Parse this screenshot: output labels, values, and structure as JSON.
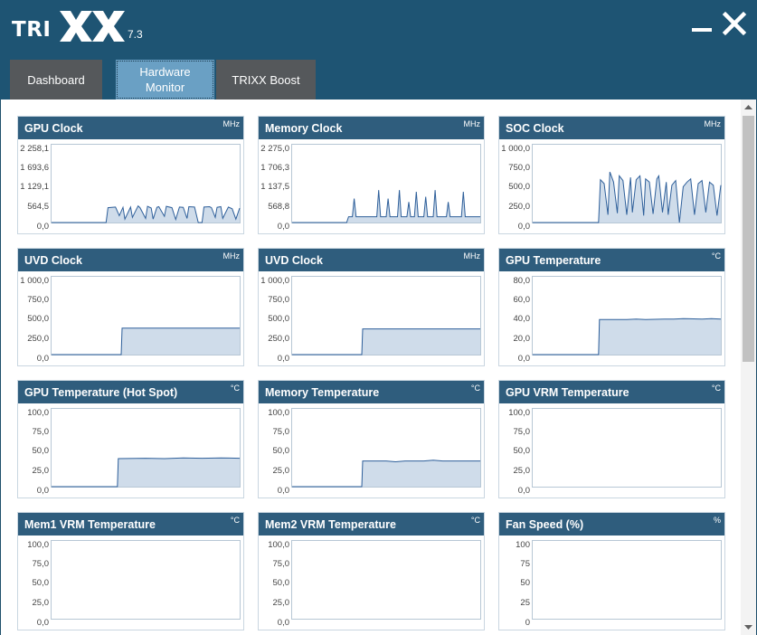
{
  "app": {
    "logo_text": "TRIXX",
    "version": "7.3"
  },
  "tabs": [
    {
      "label": "Dashboard",
      "active": false
    },
    {
      "label": "Hardware Monitor",
      "active": true
    },
    {
      "label": "TRIXX Boost",
      "active": false
    }
  ],
  "window_controls": {
    "minimize_icon": "minimize-icon",
    "close_icon": "close-icon"
  },
  "colors": {
    "header_bg": "#1e5473",
    "card_header": "#2f5d7d",
    "active_tab": "#6aa0c4",
    "inactive_tab": "#55585b",
    "chart_line": "#2e5f9a",
    "chart_fill": "#cfdcea"
  },
  "monitors": [
    {
      "title": "GPU Clock",
      "unit": "MHz",
      "ticks": [
        "2 258,1",
        "1 693,6",
        "1 129,1",
        "564,5",
        "0,0"
      ],
      "chart_data": {
        "type": "area",
        "ylim": [
          0,
          2258.1
        ],
        "x": [
          0,
          0.29,
          0.3,
          0.34,
          0.36,
          0.38,
          0.39,
          0.42,
          0.43,
          0.46,
          0.47,
          0.5,
          0.51,
          0.53,
          0.54,
          0.56,
          0.57,
          0.6,
          0.61,
          0.64,
          0.66,
          0.68,
          0.7,
          0.72,
          0.73,
          0.76,
          0.78,
          0.8,
          0.81,
          0.84,
          0.85,
          0.87,
          0.88,
          0.9,
          0.91,
          0.94,
          0.96,
          0.98,
          1
        ],
        "y": [
          0,
          0,
          430,
          450,
          200,
          440,
          100,
          450,
          150,
          480,
          430,
          120,
          470,
          420,
          100,
          440,
          460,
          180,
          470,
          430,
          90,
          450,
          440,
          120,
          460,
          450,
          0,
          0,
          450,
          460,
          430,
          150,
          440,
          460,
          120,
          450,
          400,
          100,
          420
        ]
      }
    },
    {
      "title": "Memory Clock",
      "unit": "MHz",
      "ticks": [
        "2 275,0",
        "1 706,3",
        "1 137,5",
        "568,8",
        "0,0"
      ],
      "chart_data": {
        "type": "area",
        "ylim": [
          0,
          2275
        ],
        "x": [
          0,
          0.29,
          0.3,
          0.32,
          0.33,
          0.34,
          0.45,
          0.46,
          0.47,
          0.5,
          0.51,
          0.52,
          0.56,
          0.57,
          0.58,
          0.61,
          0.62,
          0.63,
          0.65,
          0.66,
          0.67,
          0.7,
          0.71,
          0.72,
          0.75,
          0.76,
          0.77,
          0.82,
          0.83,
          0.84,
          0.9,
          0.91,
          0.92,
          1
        ],
        "y": [
          0,
          0,
          170,
          170,
          700,
          170,
          170,
          950,
          170,
          170,
          700,
          170,
          170,
          950,
          170,
          170,
          600,
          170,
          170,
          900,
          170,
          170,
          750,
          170,
          170,
          950,
          170,
          170,
          600,
          170,
          170,
          900,
          170,
          170
        ]
      }
    },
    {
      "title": "SOC Clock",
      "unit": "MHz",
      "ticks": [
        "1 000,0",
        "750,0",
        "500,0",
        "250,0",
        "0,0"
      ],
      "chart_data": {
        "type": "area",
        "ylim": [
          0,
          1000
        ],
        "x": [
          0,
          0.35,
          0.36,
          0.38,
          0.4,
          0.41,
          0.43,
          0.45,
          0.46,
          0.48,
          0.5,
          0.52,
          0.53,
          0.55,
          0.57,
          0.59,
          0.6,
          0.62,
          0.64,
          0.66,
          0.67,
          0.69,
          0.71,
          0.72,
          0.74,
          0.76,
          0.78,
          0.8,
          0.82,
          0.84,
          0.86,
          0.88,
          0.9,
          0.92,
          0.94,
          0.96,
          0.98,
          1
        ],
        "y": [
          0,
          0,
          550,
          500,
          100,
          650,
          520,
          120,
          600,
          540,
          100,
          580,
          130,
          550,
          600,
          90,
          560,
          520,
          110,
          560,
          600,
          130,
          520,
          100,
          480,
          540,
          0,
          460,
          520,
          560,
          100,
          500,
          540,
          130,
          520,
          480,
          90,
          480
        ]
      }
    },
    {
      "title": "UVD Clock",
      "unit": "MHz",
      "ticks": [
        "1 000,0",
        "750,0",
        "500,0",
        "250,0",
        "0,0"
      ],
      "chart_data": {
        "type": "area",
        "ylim": [
          0,
          1000
        ],
        "x": [
          0,
          0.37,
          0.375,
          1
        ],
        "y": [
          0,
          0,
          340,
          340
        ]
      }
    },
    {
      "title": "UVD Clock",
      "unit": "MHz",
      "ticks": [
        "1 000,0",
        "750,0",
        "500,0",
        "250,0",
        "0,0"
      ],
      "chart_data": {
        "type": "area",
        "ylim": [
          0,
          1000
        ],
        "x": [
          0,
          0.37,
          0.375,
          1
        ],
        "y": [
          0,
          0,
          330,
          330
        ]
      }
    },
    {
      "title": "GPU Temperature",
      "unit": "°C",
      "ticks": [
        "80,0",
        "60,0",
        "40,0",
        "20,0",
        "0,0"
      ],
      "chart_data": {
        "type": "area",
        "ylim": [
          0,
          80
        ],
        "x": [
          0,
          0.35,
          0.355,
          0.5,
          0.55,
          0.6,
          0.7,
          0.75,
          0.8,
          0.9,
          0.95,
          1
        ],
        "y": [
          0,
          0,
          36,
          36,
          36.5,
          36,
          36.5,
          36.5,
          37,
          36.5,
          37,
          36.5
        ]
      }
    },
    {
      "title": "GPU Temperature (Hot Spot)",
      "unit": "°C",
      "ticks": [
        "100,0",
        "75,0",
        "50,0",
        "25,0",
        "0,0"
      ],
      "chart_data": {
        "type": "area",
        "ylim": [
          0,
          100
        ],
        "x": [
          0,
          0.35,
          0.355,
          0.5,
          0.6,
          0.7,
          0.8,
          0.9,
          1
        ],
        "y": [
          0,
          0,
          36,
          36.5,
          36,
          37,
          36.5,
          37,
          36.5
        ]
      }
    },
    {
      "title": "Memory Temperature",
      "unit": "°C",
      "ticks": [
        "100,0",
        "75,0",
        "50,0",
        "25,0",
        "0,0"
      ],
      "chart_data": {
        "type": "area",
        "ylim": [
          0,
          100
        ],
        "x": [
          0,
          0.37,
          0.375,
          0.5,
          0.55,
          0.6,
          0.7,
          0.75,
          0.8,
          0.9,
          1
        ],
        "y": [
          0,
          0,
          33,
          33,
          32,
          33,
          33,
          34,
          33,
          33,
          33
        ]
      }
    },
    {
      "title": "GPU VRM Temperature",
      "unit": "°C",
      "ticks": [
        "100,0",
        "75,0",
        "50,0",
        "25,0",
        "0,0"
      ],
      "chart_data": {
        "type": "area",
        "ylim": [
          0,
          100
        ],
        "x": [],
        "y": []
      }
    },
    {
      "title": "Mem1 VRM Temperature",
      "unit": "°C",
      "ticks": [
        "100,0",
        "75,0",
        "50,0",
        "25,0",
        "0,0"
      ],
      "chart_data": {
        "type": "area",
        "ylim": [
          0,
          100
        ],
        "x": [],
        "y": []
      }
    },
    {
      "title": "Mem2 VRM Temperature",
      "unit": "°C",
      "ticks": [
        "100,0",
        "75,0",
        "50,0",
        "25,0",
        "0,0"
      ],
      "chart_data": {
        "type": "area",
        "ylim": [
          0,
          100
        ],
        "x": [],
        "y": []
      }
    },
    {
      "title": "Fan Speed (%)",
      "unit": "%",
      "ticks": [
        "100",
        "75",
        "50",
        "25",
        "0"
      ],
      "chart_data": {
        "type": "area",
        "ylim": [
          0,
          100
        ],
        "x": [],
        "y": []
      }
    }
  ]
}
